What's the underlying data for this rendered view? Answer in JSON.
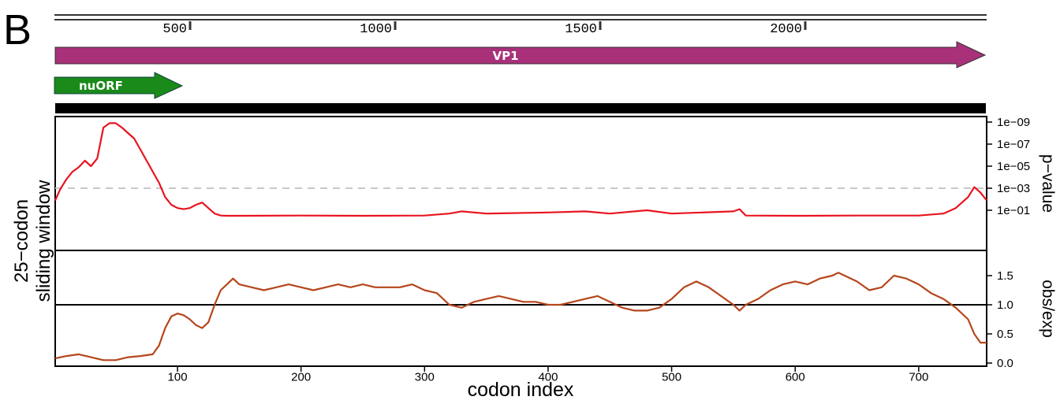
{
  "panel_label": "B",
  "genome_ruler": {
    "ticks": [
      "500",
      "1000",
      "1500",
      "2000"
    ]
  },
  "orfs": [
    {
      "name": "VP1",
      "color": "#a8317a"
    },
    {
      "name": "nuORF",
      "color": "#1a8a1a"
    }
  ],
  "chart_data": [
    {
      "type": "line",
      "panel": "p-value",
      "y_scale": "log",
      "right_axis_label": "p−value",
      "ytick_labels": [
        "1e−09",
        "1e−07",
        "1e−05",
        "1e−03",
        "1e−01"
      ],
      "threshold_dashed": 0.001,
      "series": [
        {
          "color": "#e8141e",
          "x": [
            1,
            5,
            10,
            15,
            20,
            25,
            30,
            35,
            40,
            45,
            50,
            55,
            60,
            65,
            70,
            75,
            80,
            85,
            90,
            95,
            100,
            105,
            110,
            115,
            120,
            125,
            130,
            135,
            140,
            150,
            200,
            250,
            300,
            320,
            330,
            350,
            400,
            430,
            450,
            480,
            500,
            550,
            555,
            560,
            600,
            650,
            700,
            720,
            730,
            740,
            745,
            750,
            755
          ],
          "y": [
            0.0126,
            0.00126,
            0.000158,
            3.16e-05,
            1.26e-05,
            3.16e-06,
            1e-05,
            2e-06,
            3.16e-09,
            1.26e-09,
            1.26e-09,
            3.16e-09,
            1e-08,
            3.16e-08,
            3.16e-07,
            3.16e-06,
            3.16e-05,
            0.000316,
            0.00631,
            0.0316,
            0.0631,
            0.0794,
            0.0631,
            0.0316,
            0.02,
            0.0631,
            0.2,
            0.3,
            0.316,
            0.316,
            0.3,
            0.316,
            0.3,
            0.2,
            0.126,
            0.2,
            0.158,
            0.126,
            0.2,
            0.1,
            0.2,
            0.126,
            0.0794,
            0.3,
            0.316,
            0.3,
            0.3,
            0.2,
            0.0631,
            0.00631,
            0.000794,
            0.00251,
            0.0126
          ]
        }
      ]
    },
    {
      "type": "line",
      "panel": "obs/exp",
      "right_axis_label": "obs/exp",
      "ytick_labels": [
        "0.0",
        "0.5",
        "1.0",
        "1.5"
      ],
      "reference_line": 1.0,
      "xlabel": "codon index",
      "xtick_labels": [
        "100",
        "200",
        "300",
        "400",
        "500",
        "600",
        "700"
      ],
      "xlim": [
        1,
        755
      ],
      "series": [
        {
          "color": "#b5461c",
          "x": [
            1,
            10,
            20,
            30,
            40,
            50,
            60,
            70,
            80,
            85,
            90,
            95,
            100,
            105,
            110,
            115,
            120,
            125,
            130,
            135,
            140,
            145,
            150,
            160,
            170,
            180,
            190,
            200,
            210,
            220,
            230,
            240,
            250,
            260,
            270,
            280,
            290,
            300,
            310,
            320,
            330,
            340,
            350,
            360,
            370,
            380,
            390,
            400,
            410,
            420,
            430,
            440,
            450,
            460,
            470,
            480,
            490,
            500,
            510,
            520,
            530,
            540,
            550,
            555,
            560,
            570,
            580,
            590,
            600,
            610,
            620,
            630,
            635,
            640,
            650,
            660,
            670,
            680,
            690,
            700,
            710,
            720,
            730,
            740,
            745,
            750,
            755
          ],
          "y": [
            0.08,
            0.12,
            0.15,
            0.1,
            0.05,
            0.05,
            0.1,
            0.12,
            0.15,
            0.3,
            0.6,
            0.8,
            0.85,
            0.82,
            0.75,
            0.65,
            0.6,
            0.7,
            1.0,
            1.25,
            1.35,
            1.45,
            1.35,
            1.3,
            1.25,
            1.3,
            1.35,
            1.3,
            1.25,
            1.3,
            1.35,
            1.3,
            1.35,
            1.3,
            1.3,
            1.3,
            1.35,
            1.25,
            1.2,
            1.0,
            0.95,
            1.05,
            1.1,
            1.15,
            1.1,
            1.05,
            1.05,
            1.0,
            1.0,
            1.05,
            1.1,
            1.15,
            1.05,
            0.95,
            0.9,
            0.9,
            0.95,
            1.1,
            1.3,
            1.4,
            1.3,
            1.15,
            1.0,
            0.9,
            1.0,
            1.1,
            1.25,
            1.35,
            1.4,
            1.35,
            1.45,
            1.5,
            1.55,
            1.5,
            1.4,
            1.25,
            1.3,
            1.5,
            1.45,
            1.35,
            1.2,
            1.1,
            0.95,
            0.75,
            0.5,
            0.35,
            0.35
          ]
        }
      ]
    }
  ],
  "shared_left_label": {
    "line1": "25−codon",
    "line2": "sliding window"
  }
}
